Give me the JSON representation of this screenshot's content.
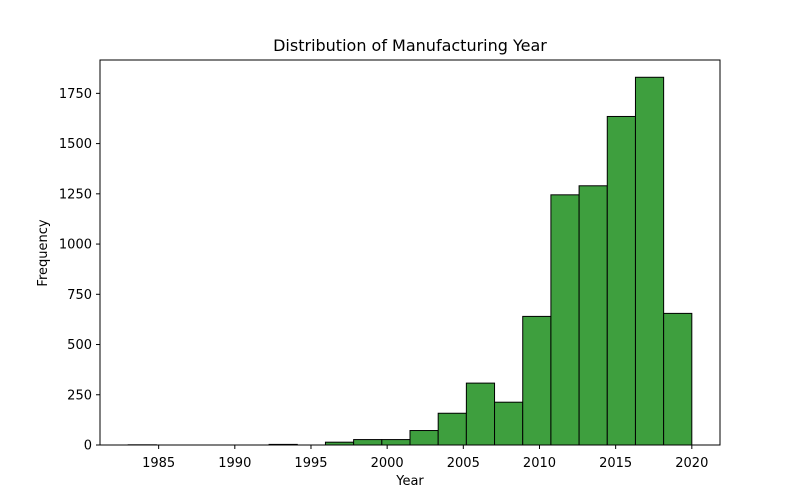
{
  "chart_data": {
    "type": "bar",
    "title": "Distribution of Manufacturing Year",
    "xlabel": "Year",
    "ylabel": "Frequency",
    "xlim": [
      1981.15,
      2021.85
    ],
    "ylim": [
      0,
      1916
    ],
    "xticks": [
      1985,
      1990,
      1995,
      2000,
      2005,
      2010,
      2015,
      2020
    ],
    "yticks": [
      0,
      250,
      500,
      750,
      1000,
      1250,
      1500,
      1750
    ],
    "grid": false,
    "bar_color": "#3e9f3e",
    "edge_color": "#000000",
    "bins": [
      {
        "start": 1983.0,
        "end": 1984.85,
        "value": 1
      },
      {
        "start": 1984.85,
        "end": 1986.7,
        "value": 0
      },
      {
        "start": 1986.7,
        "end": 1988.55,
        "value": 0
      },
      {
        "start": 1988.55,
        "end": 1990.4,
        "value": 0
      },
      {
        "start": 1990.4,
        "end": 1992.25,
        "value": 0
      },
      {
        "start": 1992.25,
        "end": 1994.1,
        "value": 3
      },
      {
        "start": 1994.1,
        "end": 1995.95,
        "value": 0
      },
      {
        "start": 1995.95,
        "end": 1997.8,
        "value": 14
      },
      {
        "start": 1997.8,
        "end": 1999.65,
        "value": 27
      },
      {
        "start": 1999.65,
        "end": 2001.5,
        "value": 27
      },
      {
        "start": 2001.5,
        "end": 2003.35,
        "value": 72
      },
      {
        "start": 2003.35,
        "end": 2005.2,
        "value": 158
      },
      {
        "start": 2005.2,
        "end": 2007.05,
        "value": 308
      },
      {
        "start": 2007.05,
        "end": 2008.9,
        "value": 213
      },
      {
        "start": 2008.9,
        "end": 2010.75,
        "value": 640
      },
      {
        "start": 2010.75,
        "end": 2012.6,
        "value": 1245
      },
      {
        "start": 2012.6,
        "end": 2014.45,
        "value": 1290
      },
      {
        "start": 2014.45,
        "end": 2016.3,
        "value": 1635
      },
      {
        "start": 2016.3,
        "end": 2018.15,
        "value": 1830
      },
      {
        "start": 2018.15,
        "end": 2020.0,
        "value": 655
      }
    ]
  }
}
